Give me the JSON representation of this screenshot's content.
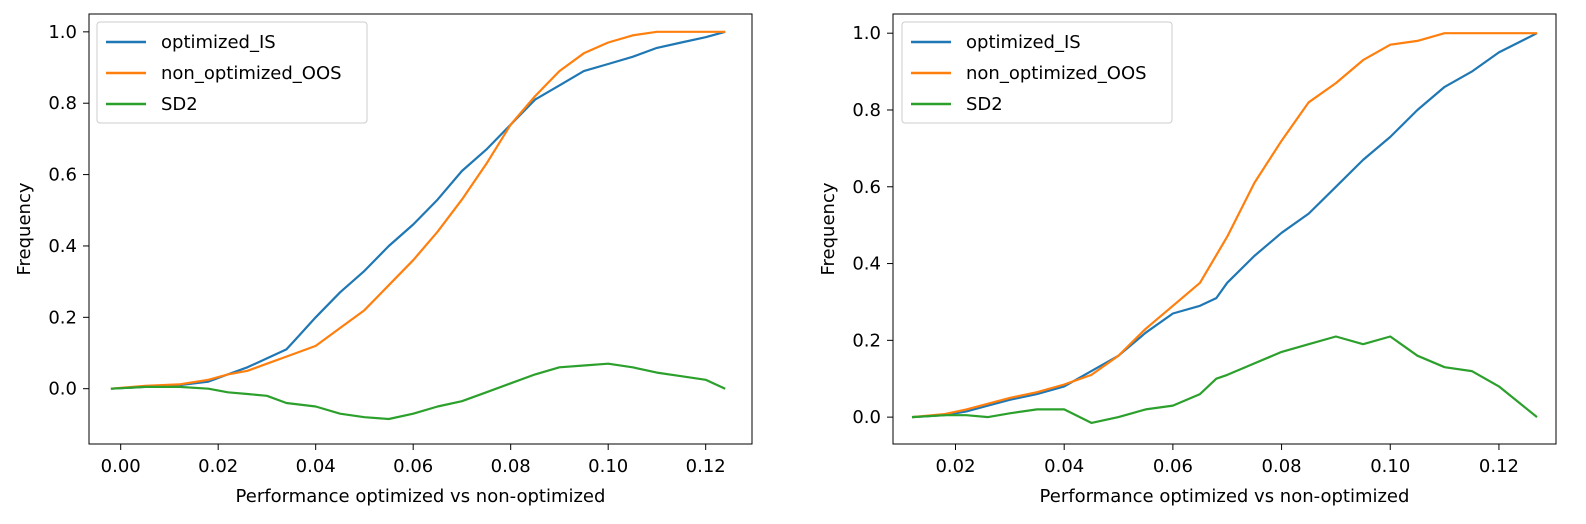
{
  "chart_data": [
    {
      "type": "line",
      "title": "",
      "xlabel": "Performance optimized vs non-optimized",
      "ylabel": "Frequency",
      "xlim": [
        -0.0065,
        0.1295
      ],
      "ylim": [
        -0.155,
        1.05
      ],
      "xticks": [
        "0.00",
        "0.02",
        "0.04",
        "0.06",
        "0.08",
        "0.10",
        "0.12"
      ],
      "yticks": [
        "0.0",
        "0.2",
        "0.4",
        "0.6",
        "0.8",
        "1.0"
      ],
      "grid": false,
      "legend_position": "top-left",
      "series": [
        {
          "name": "optimized_IS",
          "color": "#1f77b4",
          "points": [
            [
              -0.002,
              0.0
            ],
            [
              0.005,
              0.005
            ],
            [
              0.012,
              0.01
            ],
            [
              0.018,
              0.02
            ],
            [
              0.022,
              0.04
            ],
            [
              0.026,
              0.06
            ],
            [
              0.03,
              0.085
            ],
            [
              0.034,
              0.11
            ],
            [
              0.036,
              0.14
            ],
            [
              0.04,
              0.2
            ],
            [
              0.045,
              0.27
            ],
            [
              0.05,
              0.33
            ],
            [
              0.055,
              0.4
            ],
            [
              0.06,
              0.46
            ],
            [
              0.065,
              0.53
            ],
            [
              0.07,
              0.61
            ],
            [
              0.075,
              0.67
            ],
            [
              0.08,
              0.74
            ],
            [
              0.085,
              0.81
            ],
            [
              0.09,
              0.85
            ],
            [
              0.095,
              0.89
            ],
            [
              0.1,
              0.91
            ],
            [
              0.105,
              0.93
            ],
            [
              0.11,
              0.955
            ],
            [
              0.115,
              0.97
            ],
            [
              0.12,
              0.985
            ],
            [
              0.124,
              1.0
            ]
          ]
        },
        {
          "name": "non_optimized_OOS",
          "color": "#ff7f0e",
          "points": [
            [
              -0.002,
              0.0
            ],
            [
              0.005,
              0.008
            ],
            [
              0.012,
              0.012
            ],
            [
              0.018,
              0.025
            ],
            [
              0.022,
              0.04
            ],
            [
              0.026,
              0.05
            ],
            [
              0.03,
              0.07
            ],
            [
              0.034,
              0.09
            ],
            [
              0.04,
              0.12
            ],
            [
              0.045,
              0.17
            ],
            [
              0.05,
              0.22
            ],
            [
              0.055,
              0.29
            ],
            [
              0.06,
              0.36
            ],
            [
              0.065,
              0.44
            ],
            [
              0.07,
              0.53
            ],
            [
              0.075,
              0.63
            ],
            [
              0.08,
              0.74
            ],
            [
              0.085,
              0.82
            ],
            [
              0.09,
              0.89
            ],
            [
              0.095,
              0.94
            ],
            [
              0.1,
              0.97
            ],
            [
              0.105,
              0.99
            ],
            [
              0.11,
              1.0
            ],
            [
              0.124,
              1.0
            ]
          ]
        },
        {
          "name": "SD2",
          "color": "#2ca02c",
          "points": [
            [
              -0.002,
              0.0
            ],
            [
              0.005,
              0.005
            ],
            [
              0.012,
              0.005
            ],
            [
              0.018,
              0.0
            ],
            [
              0.022,
              -0.01
            ],
            [
              0.026,
              -0.015
            ],
            [
              0.03,
              -0.02
            ],
            [
              0.034,
              -0.04
            ],
            [
              0.04,
              -0.05
            ],
            [
              0.045,
              -0.07
            ],
            [
              0.05,
              -0.08
            ],
            [
              0.055,
              -0.085
            ],
            [
              0.06,
              -0.07
            ],
            [
              0.065,
              -0.05
            ],
            [
              0.07,
              -0.035
            ],
            [
              0.075,
              -0.01
            ],
            [
              0.08,
              0.015
            ],
            [
              0.085,
              0.04
            ],
            [
              0.09,
              0.06
            ],
            [
              0.095,
              0.065
            ],
            [
              0.1,
              0.07
            ],
            [
              0.105,
              0.06
            ],
            [
              0.11,
              0.045
            ],
            [
              0.115,
              0.035
            ],
            [
              0.12,
              0.025
            ],
            [
              0.124,
              0.0
            ]
          ]
        }
      ]
    },
    {
      "type": "line",
      "title": "",
      "xlabel": "Performance optimized vs non-optimized",
      "ylabel": "Frequency",
      "xlim": [
        0.0085,
        0.1305
      ],
      "ylim": [
        -0.07,
        1.05
      ],
      "xticks": [
        "0.02",
        "0.04",
        "0.06",
        "0.08",
        "0.10",
        "0.12"
      ],
      "yticks": [
        "0.0",
        "0.2",
        "0.4",
        "0.6",
        "0.8",
        "1.0"
      ],
      "grid": false,
      "legend_position": "top-left",
      "series": [
        {
          "name": "optimized_IS",
          "color": "#1f77b4",
          "points": [
            [
              0.012,
              0.0
            ],
            [
              0.018,
              0.005
            ],
            [
              0.022,
              0.015
            ],
            [
              0.026,
              0.03
            ],
            [
              0.03,
              0.045
            ],
            [
              0.035,
              0.06
            ],
            [
              0.04,
              0.08
            ],
            [
              0.045,
              0.12
            ],
            [
              0.05,
              0.16
            ],
            [
              0.055,
              0.22
            ],
            [
              0.06,
              0.27
            ],
            [
              0.065,
              0.29
            ],
            [
              0.068,
              0.31
            ],
            [
              0.07,
              0.35
            ],
            [
              0.075,
              0.42
            ],
            [
              0.08,
              0.48
            ],
            [
              0.085,
              0.53
            ],
            [
              0.09,
              0.6
            ],
            [
              0.095,
              0.67
            ],
            [
              0.1,
              0.73
            ],
            [
              0.105,
              0.8
            ],
            [
              0.11,
              0.86
            ],
            [
              0.115,
              0.9
            ],
            [
              0.12,
              0.95
            ],
            [
              0.127,
              1.0
            ]
          ]
        },
        {
          "name": "non_optimized_OOS",
          "color": "#ff7f0e",
          "points": [
            [
              0.012,
              0.0
            ],
            [
              0.018,
              0.008
            ],
            [
              0.022,
              0.02
            ],
            [
              0.026,
              0.035
            ],
            [
              0.03,
              0.05
            ],
            [
              0.035,
              0.065
            ],
            [
              0.04,
              0.085
            ],
            [
              0.045,
              0.11
            ],
            [
              0.05,
              0.16
            ],
            [
              0.055,
              0.23
            ],
            [
              0.06,
              0.29
            ],
            [
              0.065,
              0.35
            ],
            [
              0.07,
              0.47
            ],
            [
              0.075,
              0.61
            ],
            [
              0.08,
              0.72
            ],
            [
              0.085,
              0.82
            ],
            [
              0.09,
              0.87
            ],
            [
              0.095,
              0.93
            ],
            [
              0.1,
              0.97
            ],
            [
              0.105,
              0.98
            ],
            [
              0.11,
              1.0
            ],
            [
              0.127,
              1.0
            ]
          ]
        },
        {
          "name": "SD2",
          "color": "#2ca02c",
          "points": [
            [
              0.012,
              0.0
            ],
            [
              0.018,
              0.005
            ],
            [
              0.022,
              0.005
            ],
            [
              0.026,
              0.0
            ],
            [
              0.03,
              0.01
            ],
            [
              0.035,
              0.02
            ],
            [
              0.04,
              0.02
            ],
            [
              0.045,
              -0.015
            ],
            [
              0.05,
              0.0
            ],
            [
              0.055,
              0.02
            ],
            [
              0.06,
              0.03
            ],
            [
              0.065,
              0.06
            ],
            [
              0.068,
              0.1
            ],
            [
              0.07,
              0.11
            ],
            [
              0.075,
              0.14
            ],
            [
              0.08,
              0.17
            ],
            [
              0.085,
              0.19
            ],
            [
              0.09,
              0.21
            ],
            [
              0.095,
              0.19
            ],
            [
              0.1,
              0.21
            ],
            [
              0.105,
              0.16
            ],
            [
              0.11,
              0.13
            ],
            [
              0.115,
              0.12
            ],
            [
              0.12,
              0.08
            ],
            [
              0.127,
              0.0
            ]
          ]
        }
      ]
    }
  ]
}
